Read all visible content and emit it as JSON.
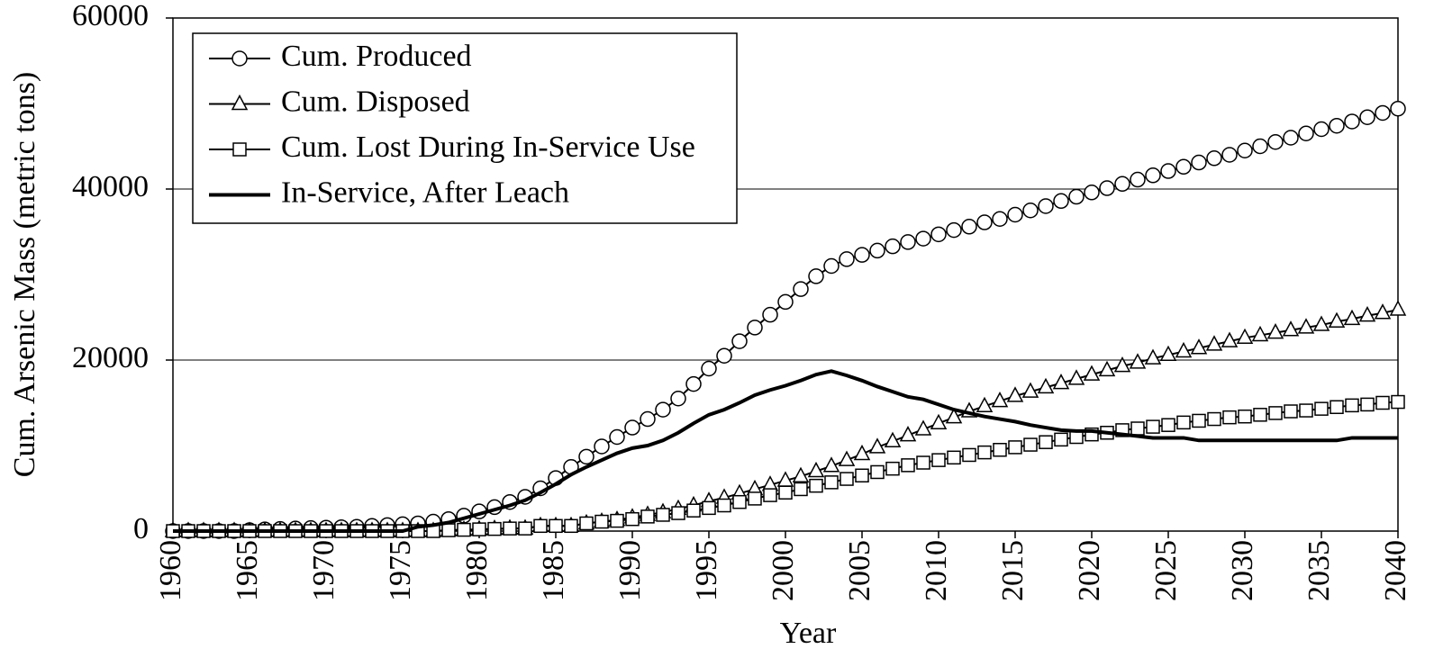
{
  "chart_data": {
    "type": "line",
    "x_label": "Year",
    "y_label": "Cum. Arsenic Mass (metric tons)",
    "x": [
      1960,
      1961,
      1962,
      1963,
      1964,
      1965,
      1966,
      1967,
      1968,
      1969,
      1970,
      1971,
      1972,
      1973,
      1974,
      1975,
      1976,
      1977,
      1978,
      1979,
      1980,
      1981,
      1982,
      1983,
      1984,
      1985,
      1986,
      1987,
      1988,
      1989,
      1990,
      1991,
      1992,
      1993,
      1994,
      1995,
      1996,
      1997,
      1998,
      1999,
      2000,
      2001,
      2002,
      2003,
      2004,
      2005,
      2006,
      2007,
      2008,
      2009,
      2010,
      2011,
      2012,
      2013,
      2014,
      2015,
      2016,
      2017,
      2018,
      2019,
      2020,
      2021,
      2022,
      2023,
      2024,
      2025,
      2026,
      2027,
      2028,
      2029,
      2030,
      2031,
      2032,
      2033,
      2034,
      2035,
      2036,
      2037,
      2038,
      2039,
      2040
    ],
    "xlim": [
      1960,
      2040
    ],
    "xticks": [
      1960,
      1965,
      1970,
      1975,
      1980,
      1985,
      1990,
      1995,
      2000,
      2005,
      2010,
      2015,
      2020,
      2025,
      2030,
      2035,
      2040
    ],
    "ylim": [
      0,
      60000
    ],
    "yticks": [
      0,
      20000,
      40000,
      60000
    ],
    "grid": true,
    "legend": "upper left",
    "series": [
      {
        "name": "Cum. Produced",
        "color": "#000000",
        "marker": "circle",
        "values": [
          0,
          0,
          0,
          0,
          0,
          100,
          200,
          250,
          300,
          350,
          400,
          450,
          500,
          600,
          700,
          800,
          900,
          1100,
          1400,
          1800,
          2300,
          2800,
          3400,
          4000,
          5000,
          6200,
          7500,
          8700,
          9900,
          11000,
          12100,
          13100,
          14200,
          15500,
          17200,
          19000,
          20500,
          22200,
          23800,
          25300,
          26800,
          28300,
          29800,
          31000,
          31800,
          32300,
          32800,
          33300,
          33800,
          34200,
          34700,
          35200,
          35600,
          36100,
          36500,
          37000,
          37500,
          38000,
          38600,
          39100,
          39600,
          40100,
          40600,
          41100,
          41600,
          42100,
          42600,
          43100,
          43600,
          44000,
          44500,
          45000,
          45500,
          46000,
          46500,
          47000,
          47400,
          47900,
          48400,
          48900,
          49400
        ]
      },
      {
        "name": "Cum. Disposed",
        "color": "#000000",
        "marker": "triangle",
        "values": [
          0,
          0,
          0,
          0,
          0,
          0,
          0,
          0,
          0,
          0,
          0,
          0,
          0,
          0,
          0,
          0,
          0,
          0,
          100,
          150,
          200,
          250,
          300,
          300,
          600,
          600,
          600,
          900,
          1100,
          1300,
          1600,
          1900,
          2200,
          2600,
          3000,
          3500,
          3900,
          4400,
          4900,
          5400,
          5900,
          6400,
          7000,
          7600,
          8300,
          9000,
          9800,
          10500,
          11200,
          11900,
          12600,
          13300,
          14000,
          14600,
          15200,
          15800,
          16300,
          16800,
          17300,
          17800,
          18300,
          18800,
          19300,
          19700,
          20200,
          20600,
          21000,
          21400,
          21800,
          22200,
          22600,
          22900,
          23200,
          23500,
          23800,
          24100,
          24500,
          24800,
          25200,
          25500,
          25900
        ]
      },
      {
        "name": "Cum. Lost During In-Service Use",
        "color": "#000000",
        "marker": "square",
        "values": [
          0,
          0,
          0,
          0,
          0,
          0,
          0,
          0,
          0,
          0,
          0,
          0,
          0,
          0,
          0,
          0,
          0,
          0,
          100,
          150,
          200,
          250,
          300,
          300,
          600,
          600,
          600,
          900,
          1100,
          1200,
          1400,
          1700,
          1900,
          2100,
          2400,
          2700,
          3000,
          3400,
          3800,
          4200,
          4500,
          4900,
          5300,
          5700,
          6100,
          6500,
          6900,
          7300,
          7700,
          8000,
          8300,
          8600,
          8900,
          9200,
          9500,
          9800,
          10100,
          10400,
          10700,
          11000,
          11300,
          11500,
          11800,
          12000,
          12200,
          12400,
          12700,
          12900,
          13100,
          13300,
          13400,
          13600,
          13800,
          14000,
          14100,
          14300,
          14500,
          14700,
          14800,
          15000,
          15100
        ]
      },
      {
        "name": "In-Service, After Leach",
        "color": "#000000",
        "marker": "none",
        "values": [
          0,
          0,
          0,
          0,
          0,
          0,
          0,
          0,
          0,
          0,
          0,
          0,
          0,
          0,
          0,
          0,
          500,
          700,
          1000,
          1500,
          2000,
          2500,
          3000,
          3600,
          4500,
          5500,
          6600,
          7500,
          8300,
          9100,
          9700,
          10000,
          10600,
          11500,
          12600,
          13600,
          14200,
          15000,
          15900,
          16500,
          17000,
          17600,
          18300,
          18700,
          18200,
          17600,
          16900,
          16300,
          15700,
          15400,
          14800,
          14200,
          13800,
          13400,
          13100,
          12800,
          12400,
          12100,
          11800,
          11700,
          11700,
          11500,
          11300,
          11100,
          10900,
          10900,
          10900,
          10600,
          10600,
          10600,
          10600,
          10600,
          10600,
          10600,
          10600,
          10600,
          10600,
          10900,
          10900,
          10900,
          10900
        ]
      }
    ]
  }
}
